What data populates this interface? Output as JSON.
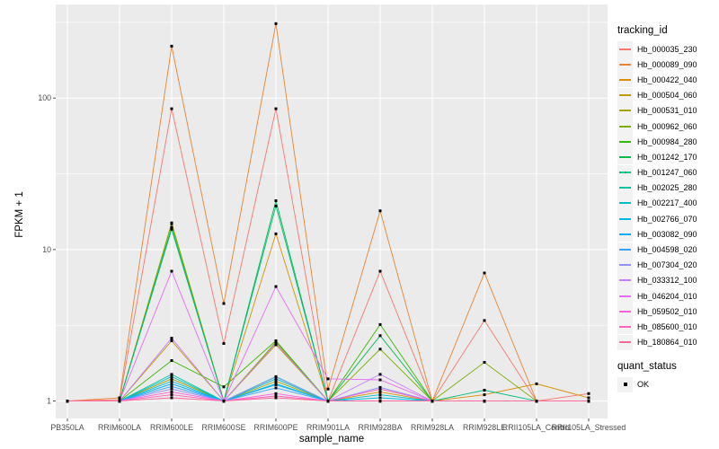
{
  "chart_data": {
    "type": "line",
    "title": "",
    "xlabel": "sample_name",
    "ylabel": "FPKM + 1",
    "y_scale": "log10",
    "y_ticks": [
      1,
      10,
      100
    ],
    "y_minor_ticks": [
      3.1623,
      31.623,
      316.23
    ],
    "ylim": [
      0.77,
      414
    ],
    "grid": true,
    "legend_position": "right",
    "legend_title": "tracking_id",
    "x_categories": [
      "PB350LA",
      "RRIM600LA",
      "RRIM600LE",
      "RRIM600SE",
      "RRIM600PE",
      "RRIM901LA",
      "RRIM928BA",
      "RRIM928LA",
      "RRIM928LE",
      "RRII105LA_Control",
      "RRII105LA_Stressed"
    ],
    "point_marker": {
      "shape": "square",
      "color": "#000000",
      "size": 3
    },
    "point_legend": {
      "title": "quant_status",
      "items": [
        {
          "label": "OK"
        }
      ]
    },
    "series": [
      {
        "name": "Hb_000035_230",
        "color": "#F8766D",
        "values": [
          1,
          1.02,
          85,
          2.4,
          85,
          1,
          7.2,
          1,
          3.4,
          1,
          1.12
        ]
      },
      {
        "name": "Hb_000089_090",
        "color": "#EA8331",
        "values": [
          1,
          1.05,
          220,
          4.4,
          310,
          1.2,
          18,
          1,
          7,
          1,
          1
        ]
      },
      {
        "name": "Hb_000422_040",
        "color": "#D89000",
        "values": [
          1,
          1,
          15,
          1,
          12.7,
          1,
          1.15,
          1,
          1.1,
          1.3,
          1.05
        ]
      },
      {
        "name": "Hb_000504_060",
        "color": "#C09B00",
        "values": [
          1,
          1,
          2.5,
          1,
          2.35,
          1,
          1.2,
          1,
          1,
          1,
          1
        ]
      },
      {
        "name": "Hb_000531_010",
        "color": "#A3A500",
        "values": [
          1,
          1,
          1.4,
          1,
          1.35,
          1,
          1,
          1,
          1,
          1,
          1
        ]
      },
      {
        "name": "Hb_000962_060",
        "color": "#7CAE00",
        "values": [
          1,
          1,
          14.8,
          1,
          2.45,
          1,
          2.2,
          1,
          1.8,
          1,
          1
        ]
      },
      {
        "name": "Hb_000984_280",
        "color": "#39B600",
        "values": [
          1,
          1,
          1.85,
          1.24,
          2.5,
          1,
          3.2,
          1,
          1,
          1,
          1
        ]
      },
      {
        "name": "Hb_001242_170",
        "color": "#00BB4E",
        "values": [
          1,
          1,
          14,
          1,
          21,
          1,
          2.7,
          1,
          1,
          1,
          1
        ]
      },
      {
        "name": "Hb_001247_060",
        "color": "#00BF7D",
        "values": [
          1,
          1,
          13.6,
          1,
          19.4,
          1,
          1,
          1,
          1.18,
          1,
          1
        ]
      },
      {
        "name": "Hb_002025_280",
        "color": "#00C1A3",
        "values": [
          1,
          1,
          1.5,
          1,
          1.45,
          1,
          1,
          1,
          1,
          1,
          1
        ]
      },
      {
        "name": "Hb_002217_400",
        "color": "#00BFC4",
        "values": [
          1,
          1,
          1.45,
          1,
          1.4,
          1,
          1.1,
          1,
          1,
          1,
          1
        ]
      },
      {
        "name": "Hb_002766_070",
        "color": "#00BAE0",
        "values": [
          1,
          1,
          1.35,
          1,
          1.3,
          1,
          1.05,
          1,
          1,
          1,
          1
        ]
      },
      {
        "name": "Hb_003082_090",
        "color": "#00B0F6",
        "values": [
          1,
          1,
          1.3,
          1,
          1.28,
          1,
          1,
          1,
          1,
          1,
          1
        ]
      },
      {
        "name": "Hb_004598_020",
        "color": "#35A2FF",
        "values": [
          1,
          1,
          1.25,
          1,
          1.22,
          1,
          1,
          1,
          1,
          1,
          1
        ]
      },
      {
        "name": "Hb_007304_020",
        "color": "#9590FF",
        "values": [
          1,
          1,
          1.2,
          1,
          1.44,
          1,
          1.23,
          1,
          1,
          1,
          1
        ]
      },
      {
        "name": "Hb_033312_100",
        "color": "#C77CFF",
        "values": [
          1,
          1,
          2.6,
          1,
          2.4,
          1,
          1.5,
          1,
          1,
          1,
          1
        ]
      },
      {
        "name": "Hb_046204_010",
        "color": "#E76BF3",
        "values": [
          1,
          1,
          7.2,
          1,
          5.7,
          1.4,
          1.38,
          1,
          1,
          1,
          1
        ]
      },
      {
        "name": "Hb_059502_010",
        "color": "#FA62DB",
        "values": [
          1,
          1,
          1.15,
          1,
          1.12,
          1,
          1.2,
          1,
          1,
          1,
          1
        ]
      },
      {
        "name": "Hb_085600_010",
        "color": "#FF62BC",
        "values": [
          1,
          1,
          1.1,
          1,
          1.08,
          1,
          1,
          1,
          1,
          1,
          1
        ]
      },
      {
        "name": "Hb_180864_010",
        "color": "#FF6A98",
        "values": [
          1,
          1,
          1.05,
          1,
          1.05,
          1,
          1,
          1,
          1,
          1,
          1
        ]
      }
    ]
  },
  "theme": {
    "panel_bg": "#EBEBEB",
    "grid_color": "#FFFFFF",
    "legend_key_bg": "#F2F2F2",
    "tick_label_color": "#4D4D4D",
    "point_color": "#000000"
  }
}
